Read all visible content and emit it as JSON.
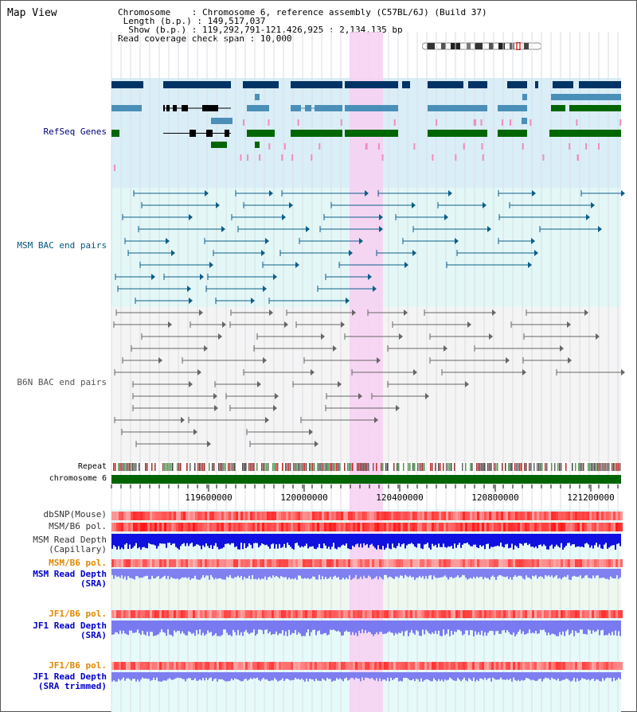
{
  "view_title": "Map View",
  "info": {
    "chromosome_key": "Chromosome",
    "chromosome_value": ": Chromosome 6, reference assembly (C57BL/6J) (Build 37)",
    "length_key": " Length (b.p.)",
    "length_value": ": 149,517,037",
    "show_key": "  Show (b.p.)",
    "show_value": ": 119,292,791-121,426,925 : 2,134,135 bp",
    "coverage_key": "Read coverage check span",
    "coverage_value": ": 10,000"
  },
  "tracks": {
    "refseq": "RefSeq Genes",
    "msm_bac": "MSM BAC end pairs",
    "b6n_bac": "B6N BAC end pairs",
    "repeat": "Repeat",
    "chromosome": "chromosome 6",
    "dbsnp": "dbSNP(Mouse)",
    "msm_b6_pol_1": "MSM/B6 pol.",
    "msm_read_depth_cap_1": "MSM Read Depth",
    "msm_read_depth_cap_2": "(Capillary)",
    "msm_b6_pol_2": "MSM/B6 pol.",
    "msm_read_depth_sra_1": "MSM Read Depth",
    "msm_read_depth_sra_2": "(SRA)",
    "jf1_b6_pol_1": "JF1/B6 pol.",
    "jf1_read_depth_sra_1": "JF1 Read Depth",
    "jf1_read_depth_sra_2": "(SRA)",
    "jf1_b6_pol_2": "JF1/B6 pol.",
    "jf1_read_depth_trim_1": "JF1 Read Depth",
    "jf1_read_depth_trim_2": "(SRA trimmed)"
  },
  "axis_labels": [
    "119600000",
    "120000000",
    "120400000",
    "120800000",
    "121200000"
  ],
  "colors": {
    "refseq_dark": "#003366",
    "refseq_mid": "#4a8fb8",
    "refseq_green": "#006600",
    "msm_bac": "#0b5f8a",
    "b6n_bac": "#666666",
    "chromosome_bar": "#006400",
    "highlight": "#f7d0f2",
    "label_blue": "#000080",
    "label_teal": "#005580",
    "label_orange": "#e08800"
  }
}
